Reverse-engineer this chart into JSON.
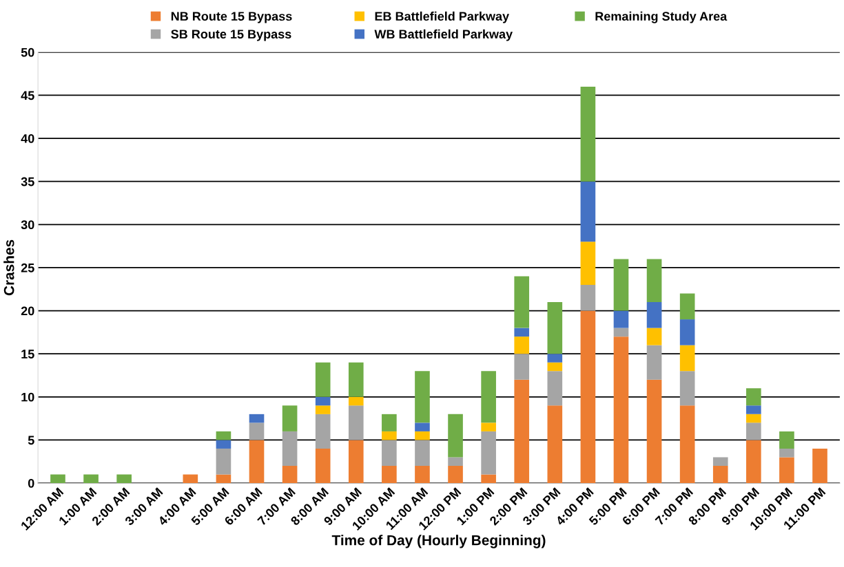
{
  "chart_data": {
    "type": "bar",
    "stacked": true,
    "xlabel": "Time of Day (Hourly Beginning)",
    "ylabel": "Crashes",
    "categories": [
      "12:00 AM",
      "1:00 AM",
      "2:00 AM",
      "3:00 AM",
      "4:00 AM",
      "5:00 AM",
      "6:00 AM",
      "7:00 AM",
      "8:00 AM",
      "9:00 AM",
      "10:00 AM",
      "11:00 AM",
      "12:00 PM",
      "1:00 PM",
      "2:00 PM",
      "3:00 PM",
      "4:00 PM",
      "5:00 PM",
      "6:00 PM",
      "7:00 PM",
      "8:00 PM",
      "9:00 PM",
      "10:00 PM",
      "11:00 PM"
    ],
    "series": [
      {
        "name": "NB Route 15 Bypass",
        "color": "#ed7d31",
        "values": [
          0,
          0,
          0,
          0,
          1,
          1,
          5,
          2,
          4,
          5,
          2,
          2,
          2,
          1,
          12,
          9,
          20,
          17,
          12,
          9,
          2,
          5,
          3,
          4
        ]
      },
      {
        "name": "SB Route 15 Bypass",
        "color": "#a5a5a5",
        "values": [
          0,
          0,
          0,
          0,
          0,
          3,
          2,
          4,
          4,
          4,
          3,
          3,
          1,
          5,
          3,
          4,
          3,
          1,
          4,
          4,
          1,
          2,
          1,
          0
        ]
      },
      {
        "name": "EB Battlefield Parkway",
        "color": "#ffc000",
        "values": [
          0,
          0,
          0,
          0,
          0,
          0,
          0,
          0,
          1,
          1,
          1,
          1,
          0,
          1,
          2,
          1,
          5,
          0,
          2,
          3,
          0,
          1,
          0,
          0
        ]
      },
      {
        "name": "WB Battlefield Parkway",
        "color": "#4472c4",
        "values": [
          0,
          0,
          0,
          0,
          0,
          1,
          1,
          0,
          1,
          0,
          0,
          1,
          0,
          0,
          1,
          1,
          7,
          2,
          3,
          3,
          0,
          1,
          0,
          0
        ]
      },
      {
        "name": "Remaining Study Area",
        "color": "#70ad47",
        "values": [
          1,
          1,
          1,
          0,
          0,
          1,
          0,
          3,
          4,
          4,
          2,
          6,
          5,
          6,
          6,
          6,
          11,
          6,
          5,
          3,
          0,
          2,
          2,
          0
        ]
      }
    ],
    "ylim": [
      0,
      50
    ],
    "yticks": [
      0,
      5,
      10,
      15,
      20,
      25,
      30,
      35,
      40,
      45,
      50
    ],
    "grid": "y",
    "legend": "top"
  }
}
